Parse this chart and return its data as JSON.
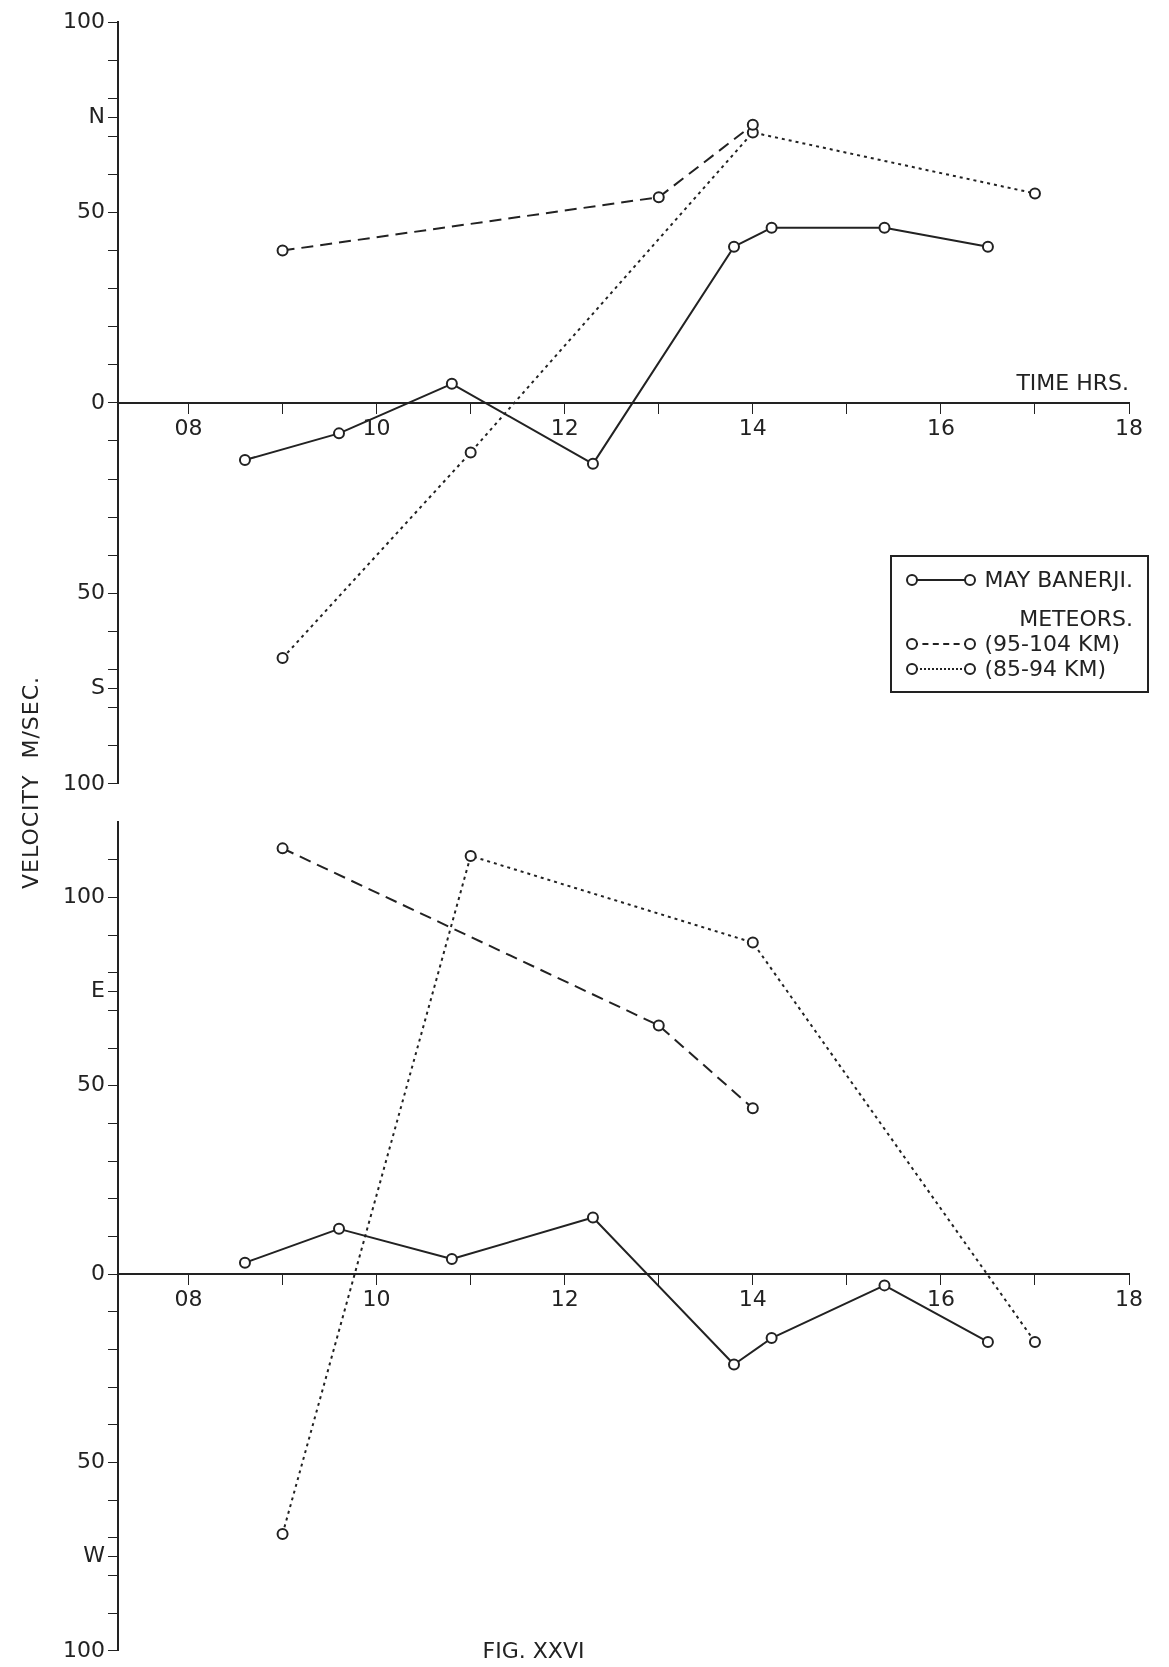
{
  "chart_data": [
    {
      "type": "line",
      "xlabel": "TIME HRS.",
      "ylabel": "VELOCITY  M/SEC.",
      "legend": "right",
      "legend_title": "METEORS.",
      "marker": "circle",
      "grid": false,
      "xlim": [
        7.25,
        18
      ],
      "ylim": [
        -100,
        100
      ],
      "xticks": [
        {
          "value": 8,
          "label": "08"
        },
        {
          "value": 9,
          "label": null
        },
        {
          "value": 10,
          "label": "10"
        },
        {
          "value": 11,
          "label": null
        },
        {
          "value": 12,
          "label": "12"
        },
        {
          "value": 13,
          "label": null
        },
        {
          "value": 14,
          "label": "14"
        },
        {
          "value": 15,
          "label": null
        },
        {
          "value": 16,
          "label": "16"
        },
        {
          "value": 17,
          "label": null
        },
        {
          "value": 18,
          "label": "18"
        }
      ],
      "yticks": [
        {
          "value": -100,
          "label": "100"
        },
        {
          "value": -90,
          "label": null
        },
        {
          "value": -80,
          "label": null
        },
        {
          "value": -75,
          "label": "S"
        },
        {
          "value": -70,
          "label": null
        },
        {
          "value": -60,
          "label": null
        },
        {
          "value": -50,
          "label": "50"
        },
        {
          "value": -40,
          "label": null
        },
        {
          "value": -30,
          "label": null
        },
        {
          "value": -20,
          "label": null
        },
        {
          "value": -10,
          "label": null
        },
        0,
        {
          "value": 10,
          "label": null
        },
        {
          "value": 20,
          "label": null
        },
        {
          "value": 30,
          "label": null
        },
        {
          "value": 40,
          "label": null
        },
        50,
        {
          "value": 60,
          "label": null
        },
        {
          "value": 70,
          "label": null
        },
        {
          "value": 75,
          "label": "N"
        },
        {
          "value": 80,
          "label": null
        },
        {
          "value": 90,
          "label": null
        },
        100
      ],
      "series": [
        {
          "name": "MAY BANERJI.",
          "color": "#222222",
          "line_style": "solid",
          "x": [
            8.6,
            9.6,
            10.8,
            12.3,
            13.8,
            14.2,
            15.4,
            16.5
          ],
          "values": [
            -15,
            -8,
            5,
            -16,
            41,
            46,
            46,
            41
          ]
        },
        {
          "name": "(95-104 KM)",
          "color": "#222222",
          "line_style": "dashed",
          "x": [
            9,
            13,
            14
          ],
          "values": [
            40,
            54,
            73
          ]
        },
        {
          "name": "(85-94 KM)",
          "color": "#222222",
          "line_style": "dotted",
          "x": [
            9,
            11,
            14,
            17
          ],
          "values": [
            -67,
            -13,
            71,
            55
          ]
        }
      ]
    },
    {
      "type": "line",
      "annotations": [
        "FIG. XXVI"
      ],
      "legend": false,
      "marker": "circle",
      "grid": false,
      "xlim": [
        7.25,
        18
      ],
      "ylim": [
        -100,
        120
      ],
      "xticks": [
        {
          "value": 8,
          "label": "08"
        },
        {
          "value": 9,
          "label": null
        },
        {
          "value": 10,
          "label": "10"
        },
        {
          "value": 11,
          "label": null
        },
        {
          "value": 12,
          "label": "12"
        },
        {
          "value": 13,
          "label": null
        },
        {
          "value": 14,
          "label": "14"
        },
        {
          "value": 15,
          "label": null
        },
        {
          "value": 16,
          "label": "16"
        },
        {
          "value": 17,
          "label": null
        },
        {
          "value": 18,
          "label": "18"
        }
      ],
      "yticks": [
        {
          "value": -100,
          "label": "100"
        },
        {
          "value": -90,
          "label": null
        },
        {
          "value": -80,
          "label": null
        },
        {
          "value": -75,
          "label": "W"
        },
        {
          "value": -70,
          "label": null
        },
        {
          "value": -60,
          "label": null
        },
        {
          "value": -50,
          "label": "50"
        },
        {
          "value": -40,
          "label": null
        },
        {
          "value": -30,
          "label": null
        },
        {
          "value": -20,
          "label": null
        },
        {
          "value": -10,
          "label": null
        },
        0,
        {
          "value": 10,
          "label": null
        },
        {
          "value": 20,
          "label": null
        },
        {
          "value": 30,
          "label": null
        },
        {
          "value": 40,
          "label": null
        },
        50,
        {
          "value": 60,
          "label": null
        },
        {
          "value": 70,
          "label": null
        },
        {
          "value": 75,
          "label": "E"
        },
        {
          "value": 80,
          "label": null
        },
        {
          "value": 90,
          "label": null
        },
        100,
        {
          "value": 110,
          "label": null
        }
      ],
      "series": [
        {
          "color": "#222222",
          "line_style": "solid",
          "x": [
            8.6,
            9.6,
            10.8,
            12.3,
            13.8,
            14.2,
            15.4,
            16.5
          ],
          "values": [
            3,
            12,
            4,
            15,
            -24,
            -17,
            -3,
            -18
          ]
        },
        {
          "color": "#222222",
          "line_style": "dashed",
          "x": [
            9,
            13,
            14
          ],
          "values": [
            113,
            66,
            44
          ]
        },
        {
          "color": "#222222",
          "line_style": "dotted",
          "x": [
            9,
            11,
            14,
            17
          ],
          "values": [
            -69,
            111,
            88,
            -18
          ]
        }
      ]
    }
  ]
}
